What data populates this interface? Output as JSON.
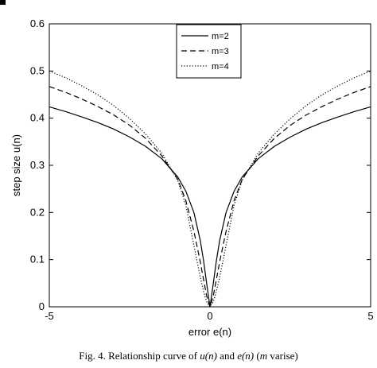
{
  "caption": {
    "prefix": "Fig. 4.   Relationship curve of ",
    "u": "u(n)",
    "and": " and ",
    "e": "e(n)",
    "open": " (",
    "m": "m",
    "suffix": " varise)"
  },
  "chart_data": {
    "type": "line",
    "title": "",
    "xlabel": "error e(n)",
    "ylabel": "step size u(n)",
    "xlim": [
      -5,
      5
    ],
    "ylim": [
      0,
      0.6
    ],
    "xticks": [
      "-5",
      "0",
      "5"
    ],
    "yticks": [
      "0",
      "0.1",
      "0.2",
      "0.3",
      "0.4",
      "0.5",
      "0.6"
    ],
    "grid": false,
    "legend_position": "top-center",
    "x": [
      -5,
      -4.5,
      -4,
      -3.5,
      -3,
      -2.5,
      -2,
      -1.5,
      -1,
      -0.75,
      -0.5,
      -0.3,
      -0.2,
      -0.1,
      0,
      0.1,
      0.2,
      0.3,
      0.5,
      0.75,
      1,
      1.5,
      2,
      2.5,
      3,
      3.5,
      4,
      4.5,
      5
    ],
    "series": [
      {
        "name": "m=2",
        "style": "solid",
        "values": [
          0.424,
          0.414,
          0.403,
          0.391,
          0.377,
          0.36,
          0.34,
          0.314,
          0.275,
          0.245,
          0.2,
          0.14,
          0.098,
          0.048,
          0.0,
          0.048,
          0.098,
          0.14,
          0.2,
          0.245,
          0.275,
          0.314,
          0.34,
          0.36,
          0.377,
          0.391,
          0.403,
          0.414,
          0.424
        ]
      },
      {
        "name": "m=3",
        "style": "dashed",
        "values": [
          0.467,
          0.455,
          0.441,
          0.425,
          0.407,
          0.385,
          0.357,
          0.32,
          0.27,
          0.225,
          0.16,
          0.095,
          0.058,
          0.022,
          0.0,
          0.022,
          0.058,
          0.095,
          0.16,
          0.225,
          0.27,
          0.32,
          0.357,
          0.385,
          0.407,
          0.425,
          0.441,
          0.455,
          0.467
        ]
      },
      {
        "name": "m=4",
        "style": "dotted",
        "values": [
          0.5,
          0.486,
          0.469,
          0.45,
          0.427,
          0.399,
          0.366,
          0.326,
          0.268,
          0.215,
          0.13,
          0.062,
          0.033,
          0.01,
          0.0,
          0.01,
          0.033,
          0.062,
          0.13,
          0.215,
          0.268,
          0.326,
          0.366,
          0.399,
          0.427,
          0.45,
          0.469,
          0.486,
          0.5
        ]
      }
    ]
  }
}
